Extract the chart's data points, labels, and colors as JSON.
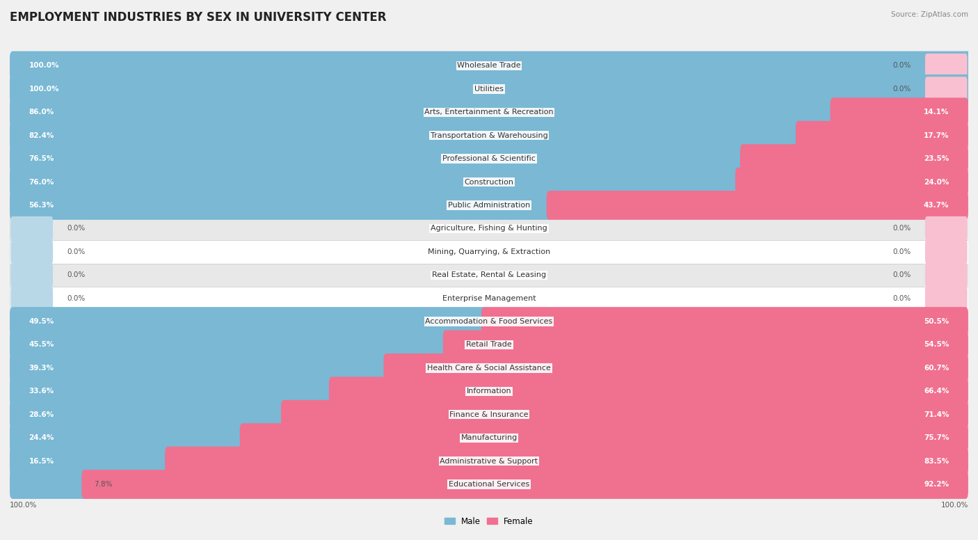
{
  "title": "EMPLOYMENT INDUSTRIES BY SEX IN UNIVERSITY CENTER",
  "source": "Source: ZipAtlas.com",
  "industries": [
    {
      "label": "Wholesale Trade",
      "male": 100.0,
      "female": 0.0
    },
    {
      "label": "Utilities",
      "male": 100.0,
      "female": 0.0
    },
    {
      "label": "Arts, Entertainment & Recreation",
      "male": 86.0,
      "female": 14.1
    },
    {
      "label": "Transportation & Warehousing",
      "male": 82.4,
      "female": 17.7
    },
    {
      "label": "Professional & Scientific",
      "male": 76.5,
      "female": 23.5
    },
    {
      "label": "Construction",
      "male": 76.0,
      "female": 24.0
    },
    {
      "label": "Public Administration",
      "male": 56.3,
      "female": 43.7
    },
    {
      "label": "Agriculture, Fishing & Hunting",
      "male": 0.0,
      "female": 0.0
    },
    {
      "label": "Mining, Quarrying, & Extraction",
      "male": 0.0,
      "female": 0.0
    },
    {
      "label": "Real Estate, Rental & Leasing",
      "male": 0.0,
      "female": 0.0
    },
    {
      "label": "Enterprise Management",
      "male": 0.0,
      "female": 0.0
    },
    {
      "label": "Accommodation & Food Services",
      "male": 49.5,
      "female": 50.5
    },
    {
      "label": "Retail Trade",
      "male": 45.5,
      "female": 54.5
    },
    {
      "label": "Health Care & Social Assistance",
      "male": 39.3,
      "female": 60.7
    },
    {
      "label": "Information",
      "male": 33.6,
      "female": 66.4
    },
    {
      "label": "Finance & Insurance",
      "male": 28.6,
      "female": 71.4
    },
    {
      "label": "Manufacturing",
      "male": 24.4,
      "female": 75.7
    },
    {
      "label": "Administrative & Support",
      "male": 16.5,
      "female": 83.5
    },
    {
      "label": "Educational Services",
      "male": 7.8,
      "female": 92.2
    }
  ],
  "male_color": "#7ab8d4",
  "female_color": "#f07090",
  "male_color_light": "#b8d8e8",
  "female_color_light": "#f8c0d0",
  "bg_color": "#f0f0f0",
  "row_bg_white": "#ffffff",
  "row_bg_gray": "#e8e8e8",
  "title_fontsize": 12,
  "label_fontsize": 8,
  "pct_fontsize": 7.5,
  "legend_fontsize": 8.5,
  "bar_height": 0.65
}
